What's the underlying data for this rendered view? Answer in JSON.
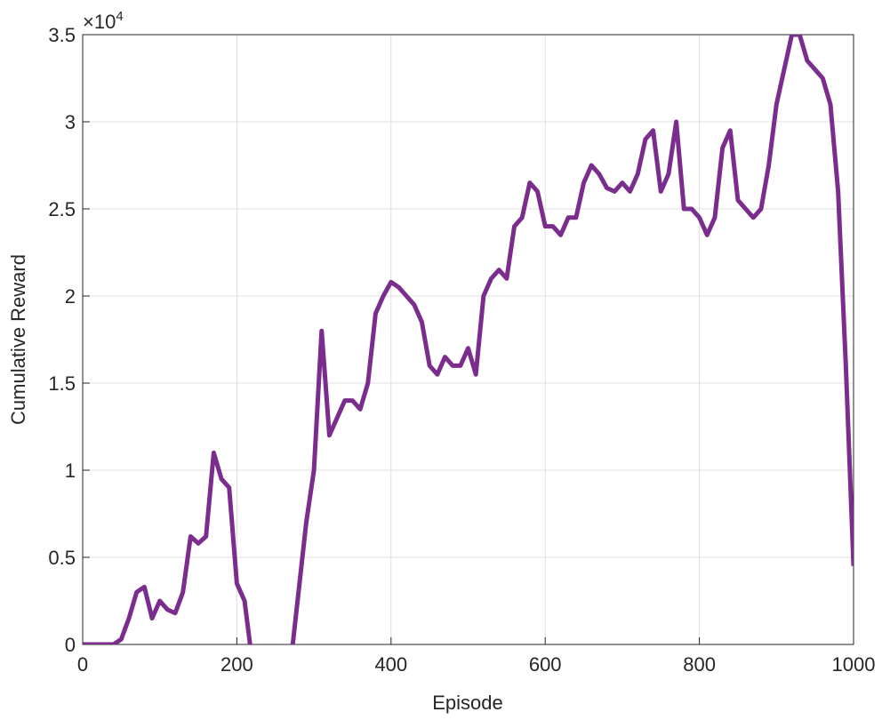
{
  "chart_data": {
    "type": "line",
    "xlabel": "Episode",
    "ylabel": "Cumulative Reward",
    "y_multiplier": {
      "base": "×10",
      "exponent": "4"
    },
    "x": [
      0,
      10,
      20,
      30,
      40,
      50,
      60,
      70,
      80,
      90,
      100,
      110,
      120,
      130,
      140,
      150,
      160,
      170,
      180,
      190,
      200,
      210,
      220,
      230,
      240,
      250,
      260,
      270,
      280,
      290,
      300,
      310,
      320,
      330,
      340,
      350,
      360,
      370,
      380,
      390,
      400,
      410,
      420,
      430,
      440,
      450,
      460,
      470,
      480,
      490,
      500,
      510,
      520,
      530,
      540,
      550,
      560,
      570,
      580,
      590,
      600,
      610,
      620,
      630,
      640,
      650,
      660,
      670,
      680,
      690,
      700,
      710,
      720,
      730,
      740,
      750,
      760,
      770,
      780,
      790,
      800,
      810,
      820,
      830,
      840,
      850,
      860,
      870,
      880,
      890,
      900,
      910,
      920,
      930,
      940,
      950,
      960,
      970,
      980,
      990,
      1000
    ],
    "series": [
      {
        "name": "Cumulative Reward",
        "color": "#7b2d8e",
        "values": [
          0,
          0,
          0,
          0,
          0,
          0.03,
          0.15,
          0.3,
          0.33,
          0.15,
          0.25,
          0.2,
          0.18,
          0.3,
          0.62,
          0.58,
          0.62,
          1.1,
          0.95,
          0.9,
          0.35,
          0.25,
          -0.1,
          -0.4,
          -0.3,
          -0.2,
          -0.3,
          -0.1,
          0.3,
          0.7,
          1.0,
          1.8,
          1.2,
          1.3,
          1.4,
          1.4,
          1.35,
          1.5,
          1.9,
          2.0,
          2.08,
          2.05,
          2.0,
          1.95,
          1.85,
          1.6,
          1.55,
          1.65,
          1.6,
          1.6,
          1.7,
          1.55,
          2.0,
          2.1,
          2.15,
          2.1,
          2.4,
          2.45,
          2.65,
          2.6,
          2.4,
          2.4,
          2.35,
          2.45,
          2.45,
          2.65,
          2.75,
          2.7,
          2.62,
          2.6,
          2.65,
          2.6,
          2.7,
          2.9,
          2.95,
          2.6,
          2.7,
          3.0,
          2.5,
          2.5,
          2.45,
          2.35,
          2.45,
          2.85,
          2.95,
          2.55,
          2.5,
          2.45,
          2.5,
          2.75,
          3.1,
          3.3,
          3.5,
          3.5,
          3.35,
          3.3,
          3.25,
          3.1,
          2.6,
          1.6,
          0.45
        ]
      }
    ],
    "xlim": [
      0,
      1000
    ],
    "xticks": [
      0,
      200,
      400,
      600,
      800,
      1000
    ],
    "ylim": [
      0,
      3.5
    ],
    "yticks": [
      0,
      0.5,
      1,
      1.5,
      2,
      2.5,
      3,
      3.5
    ],
    "grid": true
  }
}
